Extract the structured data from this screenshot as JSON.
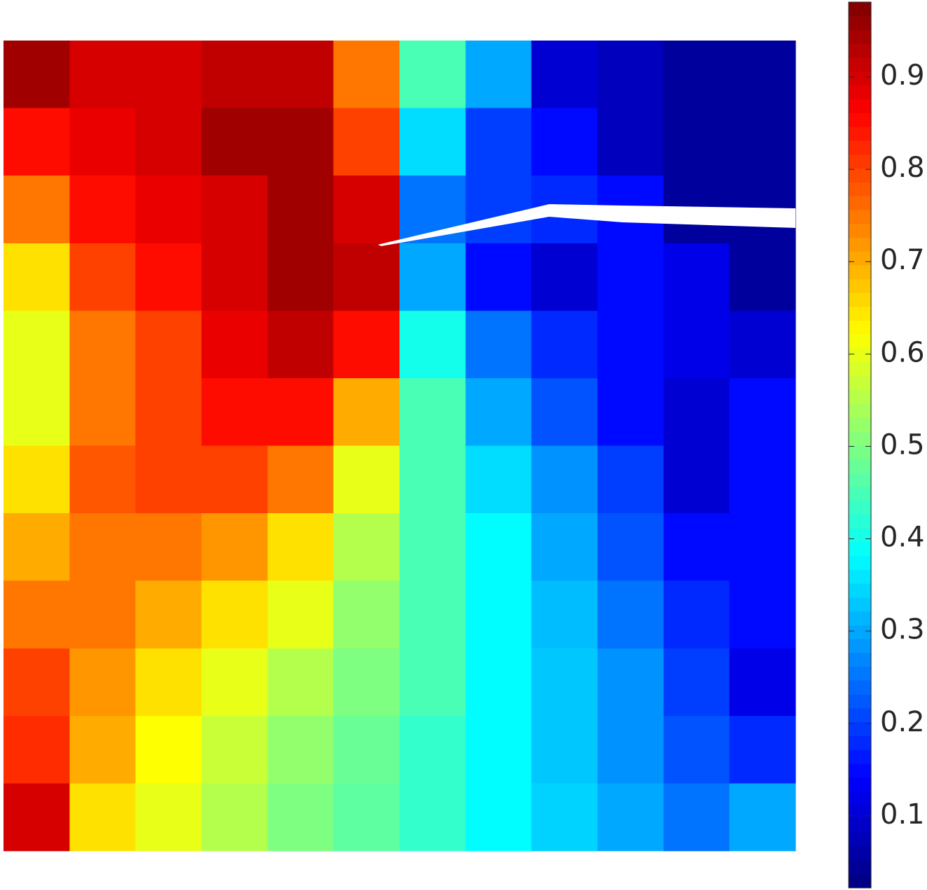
{
  "chart_data": {
    "type": "heatmap",
    "colormap": "jet",
    "zlim": [
      0.022,
      0.981
    ],
    "zticks": [
      0.1,
      0.2,
      0.3,
      0.4,
      0.5,
      0.6,
      0.7,
      0.8,
      0.9
    ],
    "z": [
      [
        0.95,
        0.9,
        0.9,
        0.92,
        0.92,
        0.75,
        0.45,
        0.3,
        0.1,
        0.08,
        0.05,
        0.05
      ],
      [
        0.85,
        0.88,
        0.9,
        0.95,
        0.95,
        0.8,
        0.35,
        0.2,
        0.15,
        0.08,
        0.05,
        0.05
      ],
      [
        0.75,
        0.85,
        0.88,
        0.9,
        0.95,
        0.9,
        0.25,
        0.2,
        0.18,
        0.15,
        0.05,
        0.05
      ],
      [
        0.65,
        0.8,
        0.85,
        0.9,
        0.95,
        0.92,
        0.3,
        0.15,
        0.1,
        0.15,
        0.12,
        0.05
      ],
      [
        0.6,
        0.75,
        0.8,
        0.88,
        0.92,
        0.85,
        0.4,
        0.25,
        0.18,
        0.15,
        0.12,
        0.1
      ],
      [
        0.6,
        0.75,
        0.8,
        0.85,
        0.85,
        0.7,
        0.45,
        0.3,
        0.22,
        0.15,
        0.1,
        0.15
      ],
      [
        0.65,
        0.78,
        0.8,
        0.8,
        0.75,
        0.6,
        0.45,
        0.35,
        0.28,
        0.2,
        0.1,
        0.15
      ],
      [
        0.7,
        0.75,
        0.75,
        0.72,
        0.65,
        0.55,
        0.45,
        0.38,
        0.3,
        0.22,
        0.15,
        0.15
      ],
      [
        0.75,
        0.75,
        0.7,
        0.65,
        0.6,
        0.52,
        0.45,
        0.38,
        0.32,
        0.25,
        0.18,
        0.15
      ],
      [
        0.8,
        0.72,
        0.65,
        0.6,
        0.55,
        0.5,
        0.45,
        0.38,
        0.33,
        0.28,
        0.2,
        0.12
      ],
      [
        0.82,
        0.7,
        0.62,
        0.57,
        0.52,
        0.48,
        0.43,
        0.38,
        0.33,
        0.28,
        0.22,
        0.18
      ],
      [
        0.9,
        0.65,
        0.6,
        0.55,
        0.5,
        0.47,
        0.43,
        0.38,
        0.34,
        0.3,
        0.25,
        0.3
      ]
    ]
  }
}
